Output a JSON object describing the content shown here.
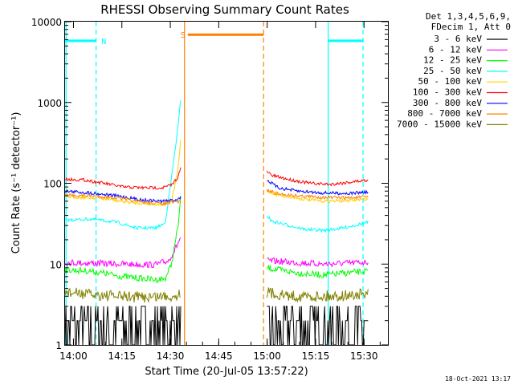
{
  "chart_data": {
    "type": "line",
    "title": "RHESSI Observing Summary Count Rates",
    "xlabel": "Start Time (20-Jul-05 13:57:22)",
    "ylabel": "Count Rate (s⁻¹ detector⁻¹)",
    "x_unit": "minutes after 13:57:22",
    "xlim": [
      0,
      100
    ],
    "ylim": [
      1,
      10000
    ],
    "yscale": "log",
    "x_ticks": [
      {
        "v": 2.6,
        "label": "14:00"
      },
      {
        "v": 17.6,
        "label": "14:15"
      },
      {
        "v": 32.6,
        "label": "14:30"
      },
      {
        "v": 47.6,
        "label": "14:45"
      },
      {
        "v": 62.6,
        "label": "15:00"
      },
      {
        "v": 77.6,
        "label": "15:15"
      },
      {
        "v": 92.6,
        "label": "15:30"
      }
    ],
    "y_ticks": [
      {
        "v": 1,
        "label": "1"
      },
      {
        "v": 10,
        "label": "10"
      },
      {
        "v": 100,
        "label": "100"
      },
      {
        "v": 1000,
        "label": "1000"
      },
      {
        "v": 10000,
        "label": "10000"
      }
    ],
    "legend_header": [
      "Det 1,3,4,5,6,9,",
      "FDecim 1, Att 0"
    ],
    "legend_position": "top-right outside",
    "series": [
      {
        "name": "3 - 6 keV",
        "color": "#000000",
        "segments": [
          {
            "x": [
              0,
              36
            ],
            "y": [
              1.6,
              1.6
            ]
          },
          {
            "x": [
              62.5,
              94
            ],
            "y": [
              1.6,
              1.6
            ]
          }
        ]
      },
      {
        "name": "6 - 12 keV",
        "color": "#ff00ff",
        "segments": [
          {
            "x": [
              0,
              8,
              18,
              28,
              32,
              34,
              36
            ],
            "y": [
              10.5,
              10.3,
              10,
              9.8,
              11,
              15,
              22
            ]
          },
          {
            "x": [
              62.5,
              66,
              72,
              80,
              88,
              94
            ],
            "y": [
              11,
              10.8,
              10.4,
              10,
              10.3,
              10.6
            ]
          }
        ]
      },
      {
        "name": "12 - 25 keV",
        "color": "#00ff00",
        "segments": [
          {
            "x": [
              0,
              8,
              18,
              28,
              31,
              33,
              35,
              36
            ],
            "y": [
              8.5,
              8.2,
              7,
              6.4,
              6.6,
              10,
              30,
              75
            ]
          },
          {
            "x": [
              62.5,
              66,
              72,
              80,
              88,
              94
            ],
            "y": [
              9,
              8.5,
              7.8,
              7.3,
              7.8,
              8.2
            ]
          }
        ]
      },
      {
        "name": "25 - 50 keV",
        "color": "#00ffff",
        "segments": [
          {
            "x": [
              0,
              8,
              16,
              22,
              28,
              31,
              33,
              35,
              36
            ],
            "y": [
              35,
              36,
              33,
              28,
              28,
              32,
              120,
              500,
              1300
            ]
          },
          {
            "x": [
              62.5,
              64,
              68,
              74,
              80,
              86,
              94
            ],
            "y": [
              40,
              34,
              31,
              27,
              26,
              28,
              33
            ]
          }
        ]
      },
      {
        "name": "50 - 100 keV",
        "color": "#ffd000",
        "segments": [
          {
            "x": [
              0,
              10,
              20,
              28,
              31,
              33,
              35,
              36
            ],
            "y": [
              68,
              66,
              58,
              55,
              55,
              60,
              150,
              400
            ]
          },
          {
            "x": [
              62.5,
              66,
              72,
              80,
              88,
              94
            ],
            "y": [
              80,
              72,
              65,
              60,
              61,
              64
            ]
          }
        ]
      },
      {
        "name": "100 - 300 keV",
        "color": "#ff0000",
        "segments": [
          {
            "x": [
              0,
              6,
              12,
              18,
              24,
              30,
              33,
              35,
              36
            ],
            "y": [
              112,
              110,
              100,
              90,
              88,
              88,
              95,
              120,
              160
            ]
          },
          {
            "x": [
              62.5,
              64,
              70,
              76,
              82,
              88,
              94
            ],
            "y": [
              140,
              125,
              110,
              100,
              97,
              103,
              110
            ]
          }
        ]
      },
      {
        "name": "300 - 800 keV",
        "color": "#0000ff",
        "segments": [
          {
            "x": [
              0,
              8,
              16,
              24,
              30,
              34,
              36
            ],
            "y": [
              80,
              76,
              70,
              62,
              60,
              62,
              67
            ]
          },
          {
            "x": [
              62.5,
              66,
              72,
              80,
              88,
              94
            ],
            "y": [
              110,
              88,
              80,
              76,
              75,
              78
            ]
          }
        ]
      },
      {
        "name": "800 - 7000 keV",
        "color": "#ff8000",
        "segments": [
          {
            "x": [
              0,
              8,
              16,
              24,
              30,
              34,
              36
            ],
            "y": [
              71,
              70,
              66,
              58,
              56,
              58,
              60
            ]
          },
          {
            "x": [
              62.5,
              66,
              72,
              80,
              88,
              94
            ],
            "y": [
              82,
              74,
              70,
              67,
              66,
              68
            ]
          }
        ]
      },
      {
        "name": "7000 - 15000 keV",
        "color": "#808000",
        "segments": [
          {
            "x": [
              0,
              8,
              16,
              24,
              30,
              34,
              36
            ],
            "y": [
              4.5,
              4.2,
              4,
              3.9,
              4,
              4,
              4.5
            ]
          },
          {
            "x": [
              62.5,
              66,
              72,
              80,
              88,
              94
            ],
            "y": [
              4.5,
              4.2,
              4,
              4,
              4.1,
              4.3
            ]
          }
        ]
      }
    ],
    "annotations": [
      {
        "label": "N",
        "color": "#00ffff",
        "bar": [
          0,
          9.5
        ],
        "y": 5800
      },
      {
        "label": "S",
        "color": "#ff8000",
        "bar": [
          38,
          61.5
        ],
        "y": 6900
      },
      {
        "label": "",
        "color": "#00ffff",
        "bar": [
          81.5,
          92.3
        ],
        "y": 5800
      }
    ],
    "vlines": [
      {
        "x": 0.3,
        "color": "#00ffff",
        "dash": false
      },
      {
        "x": 9.6,
        "color": "#00ffff",
        "dash": true
      },
      {
        "x": 37,
        "color": "#ff8000",
        "dash": false
      },
      {
        "x": 61.5,
        "color": "#ff8000",
        "dash": true
      },
      {
        "x": 81.5,
        "color": "#00ffff",
        "dash": false
      },
      {
        "x": 92.3,
        "color": "#00ffff",
        "dash": true
      }
    ],
    "timestamp": "18-Oct-2021 13:17"
  }
}
